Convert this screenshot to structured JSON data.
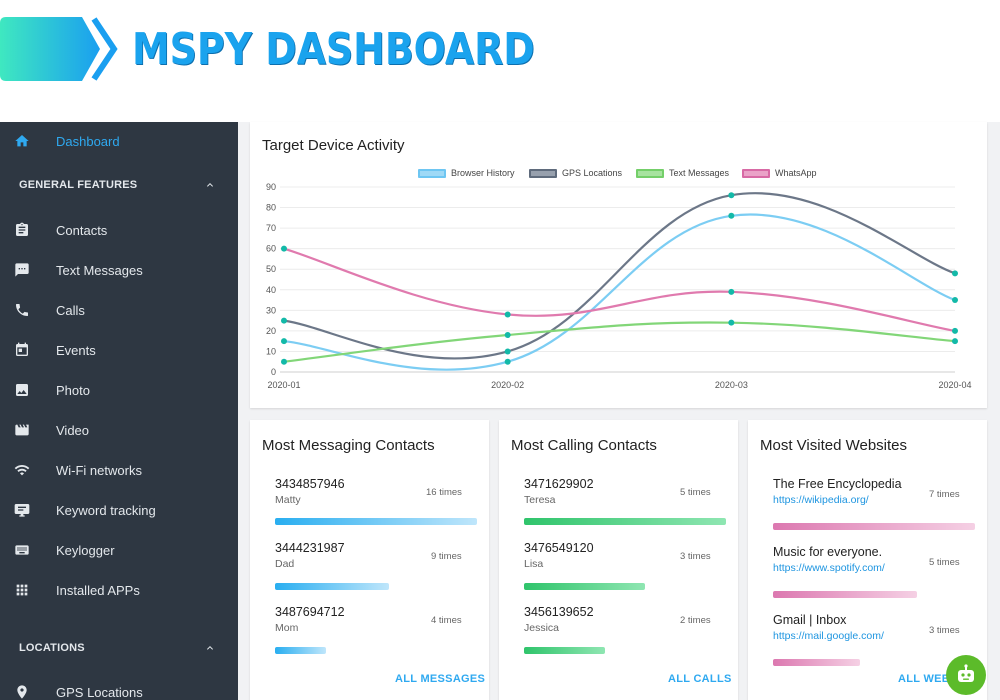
{
  "header": {
    "title": "MSPY DASHBOARD"
  },
  "sidebar": {
    "dashboard": {
      "label": "Dashboard",
      "icon": "home-icon"
    },
    "general_features": {
      "label": "GENERAL FEATURES",
      "items": [
        {
          "label": "Contacts",
          "icon": "clipboard-icon"
        },
        {
          "label": "Text Messages",
          "icon": "chat-icon"
        },
        {
          "label": "Calls",
          "icon": "phone-icon"
        },
        {
          "label": "Events",
          "icon": "calendar-icon"
        },
        {
          "label": "Photo",
          "icon": "image-icon"
        },
        {
          "label": "Video",
          "icon": "movie-icon"
        },
        {
          "label": "Wi-Fi networks",
          "icon": "wifi-icon"
        },
        {
          "label": "Keyword tracking",
          "icon": "monitor-icon"
        },
        {
          "label": "Keylogger",
          "icon": "keyboard-icon"
        },
        {
          "label": "Installed APPs",
          "icon": "apps-grid-icon"
        }
      ]
    },
    "locations": {
      "label": "LOCATIONS",
      "items": [
        {
          "label": "GPS Locations",
          "icon": "location-pin-icon"
        }
      ]
    }
  },
  "activity": {
    "title": "Target Device Activity",
    "chart_data": {
      "type": "line",
      "x": [
        "2020-01",
        "2020-02",
        "2020-03",
        "2020-04"
      ],
      "ylim": [
        0,
        90
      ],
      "yticks": [
        0,
        10,
        20,
        30,
        40,
        50,
        60,
        70,
        80,
        90
      ],
      "grid": true,
      "legend_position": "top",
      "series": [
        {
          "name": "Browser History",
          "color": "#7ccdf3",
          "values": [
            15,
            5,
            76,
            35
          ]
        },
        {
          "name": "GPS Locations",
          "color": "#6c7788",
          "values": [
            25,
            10,
            86,
            48
          ]
        },
        {
          "name": "Text Messages",
          "color": "#82d678",
          "values": [
            5,
            18,
            24,
            15
          ]
        },
        {
          "name": "WhatsApp",
          "color": "#e07aae",
          "values": [
            60,
            28,
            39,
            20
          ]
        }
      ]
    }
  },
  "messaging": {
    "title": "Most Messaging Contacts",
    "link": "ALL MESSAGES",
    "bar_colors": [
      "#29aef0",
      "#bfe6fb"
    ],
    "items": [
      {
        "number": "3434857946",
        "name": "Matty",
        "count": "16 times",
        "fraction": 1.0
      },
      {
        "number": "3444231987",
        "name": "Dad",
        "count": "9 times",
        "fraction": 0.5625
      },
      {
        "number": "3487694712",
        "name": "Mom",
        "count": "4 times",
        "fraction": 0.25
      }
    ]
  },
  "calling": {
    "title": "Most Calling Contacts",
    "link": "ALL CALLS",
    "bar_colors": [
      "#2fc46b",
      "#8fe6b2"
    ],
    "items": [
      {
        "number": "3471629902",
        "name": "Teresa",
        "count": "5 times",
        "fraction": 1.0
      },
      {
        "number": "3476549120",
        "name": "Lisa",
        "count": "3 times",
        "fraction": 0.6
      },
      {
        "number": "3456139652",
        "name": "Jessica",
        "count": "2 times",
        "fraction": 0.4
      }
    ]
  },
  "websites": {
    "title": "Most Visited Websites",
    "link": "ALL WEBS",
    "bar_colors": [
      "#dc78b0",
      "#f5d0e4"
    ],
    "items": [
      {
        "title": "The Free Encyclopedia",
        "url": "https://wikipedia.org/",
        "count": "7 times",
        "fraction": 1.0
      },
      {
        "title": "Music for everyone.",
        "url": "https://www.spotify.com/",
        "count": "5 times",
        "fraction": 0.7143
      },
      {
        "title": "Gmail | Inbox",
        "url": "https://mail.google.com/",
        "count": "3 times",
        "fraction": 0.4286
      }
    ]
  },
  "colors": {
    "accent": "#1aa3ee",
    "sidebar_bg": "#2e3742",
    "chart_point": "#13b9a8"
  }
}
